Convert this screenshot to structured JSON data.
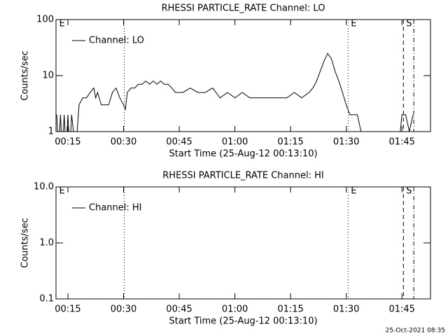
{
  "chart_data": [
    {
      "type": "line",
      "title": "RHESSI PARTICLE_RATE Channel: LO",
      "xlabel": "Start Time (25-Aug-12 00:13:10)",
      "ylabel": "Counts/sec",
      "xlim": [
        11.8,
        112.7
      ],
      "xticks": [
        {
          "value": 15,
          "label": "00:15"
        },
        {
          "value": 30,
          "label": "00:30"
        },
        {
          "value": 45,
          "label": "00:45"
        },
        {
          "value": 60,
          "label": "01:00"
        },
        {
          "value": 75,
          "label": "01:15"
        },
        {
          "value": 90,
          "label": "01:30"
        },
        {
          "value": 105,
          "label": "01:45"
        }
      ],
      "ylim": [
        1,
        100
      ],
      "yticks": [
        1,
        10,
        100
      ],
      "log_y": true,
      "series": [
        {
          "name": "Channel: LO",
          "color": "#000000",
          "x": [
            12,
            12.5,
            13,
            13.5,
            14,
            14.5,
            15,
            15.5,
            16,
            16.5,
            17,
            17.5,
            18,
            19,
            20,
            21,
            22,
            22.5,
            23,
            24,
            25,
            26,
            27,
            28,
            29,
            30,
            30.5,
            31,
            32,
            33,
            34,
            35,
            36,
            37,
            38,
            39,
            40,
            41,
            42,
            43,
            44,
            46,
            48,
            50,
            52,
            54,
            56,
            58,
            60,
            62,
            64,
            66,
            68,
            70,
            72,
            74,
            76,
            78,
            80,
            81,
            82,
            83,
            84,
            85,
            86,
            87,
            88,
            89,
            90,
            91,
            92,
            93,
            94,
            95,
            96,
            97,
            98,
            99,
            100,
            101,
            102,
            103,
            104,
            105,
            106,
            107,
            108
          ],
          "values": [
            2,
            0,
            2,
            0,
            2,
            0,
            2,
            0,
            2,
            1,
            0,
            1,
            3,
            4,
            4,
            5,
            6,
            4,
            5,
            3,
            3,
            3,
            5,
            6,
            4,
            3,
            2.5,
            5,
            6,
            6,
            7,
            7,
            8,
            7,
            8,
            7,
            8,
            7,
            7,
            6,
            5,
            5,
            6,
            5,
            5,
            6,
            4,
            5,
            4,
            5,
            4,
            4,
            4,
            4,
            4,
            4,
            5,
            4,
            5,
            6,
            8,
            12,
            18,
            25,
            20,
            12,
            8,
            5,
            3,
            2,
            2,
            2,
            1,
            0,
            0,
            0,
            1,
            0,
            0,
            1,
            0,
            0,
            0,
            2,
            2,
            1,
            2
          ]
        }
      ],
      "markers": [
        {
          "x": 11.9,
          "style": "none",
          "label": "E"
        },
        {
          "x": 30.2,
          "style": "dotted"
        },
        {
          "x": 90.5,
          "style": "dotted",
          "label": "E"
        },
        {
          "x": 105.4,
          "style": "dashed",
          "label": "S"
        },
        {
          "x": 108.2,
          "style": "dashdot"
        }
      ]
    },
    {
      "type": "line",
      "title": "RHESSI PARTICLE_RATE Channel: HI",
      "xlabel": "Start Time (25-Aug-12 00:13:10)",
      "ylabel": "Counts/sec",
      "xlim": [
        11.8,
        112.7
      ],
      "xticks": [
        {
          "value": 15,
          "label": "00:15"
        },
        {
          "value": 30,
          "label": "00:30"
        },
        {
          "value": 45,
          "label": "00:45"
        },
        {
          "value": 60,
          "label": "01:00"
        },
        {
          "value": 75,
          "label": "01:15"
        },
        {
          "value": 90,
          "label": "01:30"
        },
        {
          "value": 105,
          "label": "01:45"
        }
      ],
      "ylim": [
        0.1,
        10
      ],
      "yticks": [
        {
          "value": 0.1,
          "label": "0.1"
        },
        {
          "value": 1,
          "label": "1.0"
        },
        {
          "value": 10,
          "label": "10.0"
        }
      ],
      "log_y": true,
      "series": [
        {
          "name": "Channel: HI",
          "color": "#000000",
          "x": [],
          "values": []
        }
      ],
      "markers": [
        {
          "x": 11.9,
          "style": "none",
          "label": "E"
        },
        {
          "x": 30.2,
          "style": "dotted"
        },
        {
          "x": 90.5,
          "style": "dotted",
          "label": "E"
        },
        {
          "x": 105.4,
          "style": "dashed",
          "label": "S"
        },
        {
          "x": 108.2,
          "style": "dashdot"
        }
      ]
    }
  ],
  "footer": "25-Oct-2021 08:35"
}
